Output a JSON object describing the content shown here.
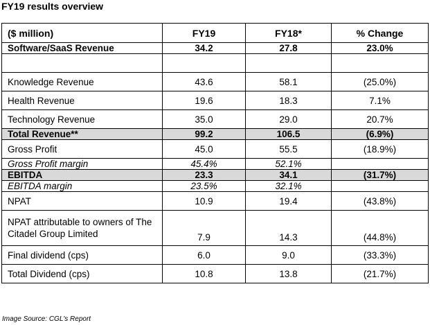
{
  "title": "FY19 results overview",
  "table": {
    "headers": [
      "($ million)",
      "FY19",
      "FY18*",
      "% Change"
    ],
    "rows": [
      {
        "label": "Software/SaaS Revenue",
        "fy19": "34.2",
        "fy18": "27.8",
        "change": "23.0%",
        "style": "boldrow"
      },
      {
        "label": "",
        "fy19": "",
        "fy18": "",
        "change": "",
        "style": "gap"
      },
      {
        "label": "Knowledge Revenue",
        "fy19": "43.6",
        "fy18": "58.1",
        "change": "(25.0%)",
        "style": "normal"
      },
      {
        "label": "Health Revenue",
        "fy19": "19.6",
        "fy18": "18.3",
        "change": "7.1%",
        "style": "normal"
      },
      {
        "label": "Technology Revenue",
        "fy19": "35.0",
        "fy18": "29.0",
        "change": "20.7%",
        "style": "normal"
      },
      {
        "label": "Total Revenue**",
        "fy19": "99.2",
        "fy18": "106.5",
        "change": "(6.9%)",
        "style": "shade"
      },
      {
        "label": "Gross Profit",
        "fy19": "45.0",
        "fy18": "55.5",
        "change": "(18.9%)",
        "style": "normal"
      },
      {
        "label": "Gross Profit margin",
        "fy19": "45.4%",
        "fy18": "52.1%",
        "change": "",
        "style": "italic"
      },
      {
        "label": "EBITDA",
        "fy19": "23.3",
        "fy18": "34.1",
        "change": "(31.7%)",
        "style": "shade"
      },
      {
        "label": "EBITDA margin",
        "fy19": "23.5%",
        "fy18": "32.1%",
        "change": "",
        "style": "italic"
      },
      {
        "label": "NPAT",
        "fy19": "10.9",
        "fy18": "19.4",
        "change": "(43.8%)",
        "style": "normal"
      },
      {
        "label": "NPAT attributable to owners of The Citadel Group Limited",
        "fy19": "7.9",
        "fy18": "14.3",
        "change": "(44.8%)",
        "style": "tall"
      },
      {
        "label": "Final dividend (cps)",
        "fy19": "6.0",
        "fy18": "9.0",
        "change": "(33.3%)",
        "style": "normal"
      },
      {
        "label": "Total Dividend (cps)",
        "fy19": "10.8",
        "fy18": "13.8",
        "change": "(21.7%)",
        "style": "normal"
      }
    ]
  },
  "source": "Image Source: CGL's Report"
}
